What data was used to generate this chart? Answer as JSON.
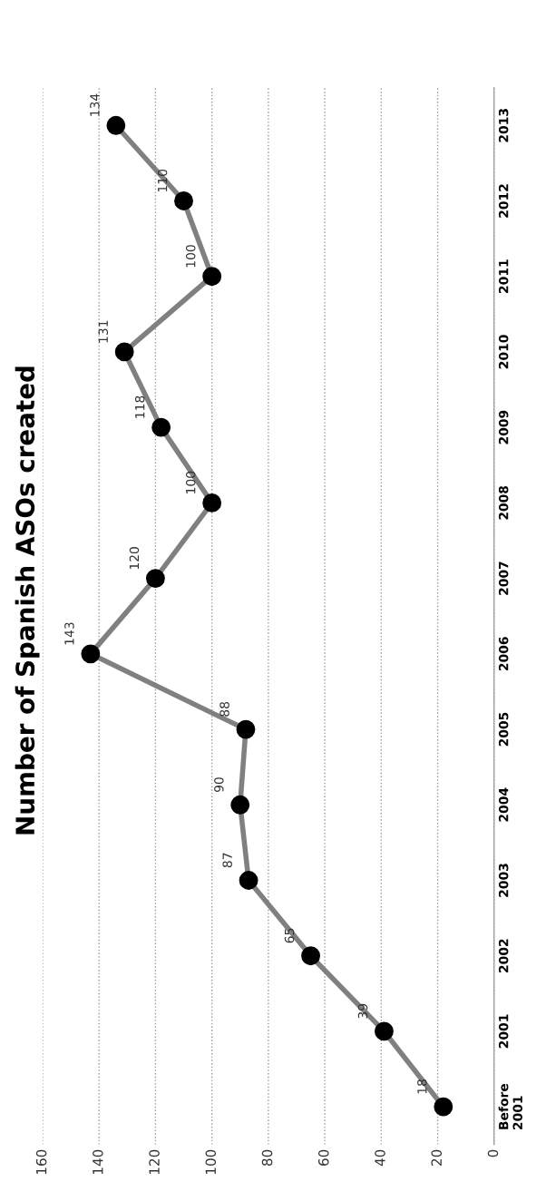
{
  "chart_data": {
    "type": "line",
    "orientation": "horizontal",
    "title": "Number of Spanish ASOs created",
    "categories": [
      "2013",
      "2012",
      "2011",
      "2010",
      "2009",
      "2008",
      "2007",
      "2006",
      "2005",
      "2004",
      "2003",
      "2002",
      "2001",
      "Before\n2001"
    ],
    "series": [
      {
        "color": "#808080",
        "values": [
          134,
          110,
          100,
          131,
          118,
          100,
          120,
          143,
          88,
          90,
          87,
          65,
          39,
          18
        ]
      }
    ],
    "xlim": [
      160,
      0
    ],
    "xticks": [
      160,
      140,
      120,
      100,
      80,
      60,
      40,
      20,
      0
    ],
    "grid": "x",
    "marker": "circle",
    "data_labels": true
  }
}
